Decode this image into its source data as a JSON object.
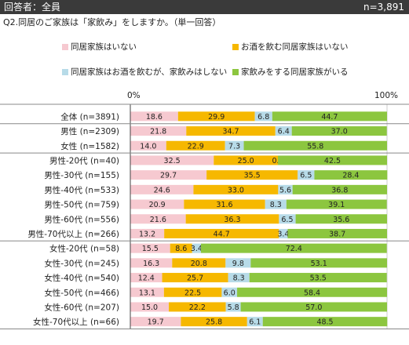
{
  "header": {
    "left": "回答者：全員",
    "right": "n=3,891"
  },
  "question": "Q2.同居のご家族は「家飲み」をしますか。（単一回答）",
  "chart_data": {
    "type": "bar",
    "orientation": "horizontal",
    "stacked": true,
    "percent_axis": true,
    "xlim": [
      0,
      100
    ],
    "axis_tick_labels": [
      "0%",
      "100%"
    ],
    "legend_position": "top",
    "categories": [
      "全体 (n=3891)",
      "男性 (n=2309)",
      "女性 (n=1582)",
      "男性-20代 (n=40)",
      "男性-30代 (n=155)",
      "男性-40代 (n=533)",
      "男性-50代 (n=759)",
      "男性-60代 (n=556)",
      "男性-70代以上 (n=266)",
      "女性-20代 (n=58)",
      "女性-30代 (n=245)",
      "女性-40代 (n=540)",
      "女性-50代 (n=466)",
      "女性-60代 (n=207)",
      "女性-70代以上 (n=66)"
    ],
    "groups": [
      1,
      2,
      6,
      6
    ],
    "series": [
      {
        "name": "同居家族はいない",
        "color": "#f6c9d0",
        "values": [
          18.6,
          21.8,
          14.0,
          32.5,
          29.7,
          24.6,
          20.9,
          21.6,
          13.2,
          15.5,
          16.3,
          12.4,
          13.1,
          15.0,
          19.7
        ]
      },
      {
        "name": "お酒を飲む同居家族はいない",
        "color": "#f6b800",
        "values": [
          29.9,
          34.7,
          22.9,
          25.0,
          35.5,
          33.0,
          31.6,
          36.3,
          44.7,
          8.6,
          20.8,
          25.7,
          22.5,
          22.2,
          25.8
        ]
      },
      {
        "name": "同居家族はお酒を飲むが、家飲みはしない",
        "color": "#b7dbe8",
        "values": [
          6.8,
          6.4,
          7.3,
          0.0,
          6.5,
          5.6,
          8.3,
          6.5,
          3.4,
          3.4,
          9.8,
          8.3,
          6.0,
          5.8,
          6.1
        ]
      },
      {
        "name": "家飲みをする同居家族がいる",
        "color": "#8cc63f",
        "values": [
          44.7,
          37.0,
          55.8,
          42.5,
          28.4,
          36.8,
          39.1,
          35.6,
          38.7,
          72.4,
          53.1,
          53.5,
          58.4,
          57.0,
          48.5
        ]
      }
    ]
  }
}
